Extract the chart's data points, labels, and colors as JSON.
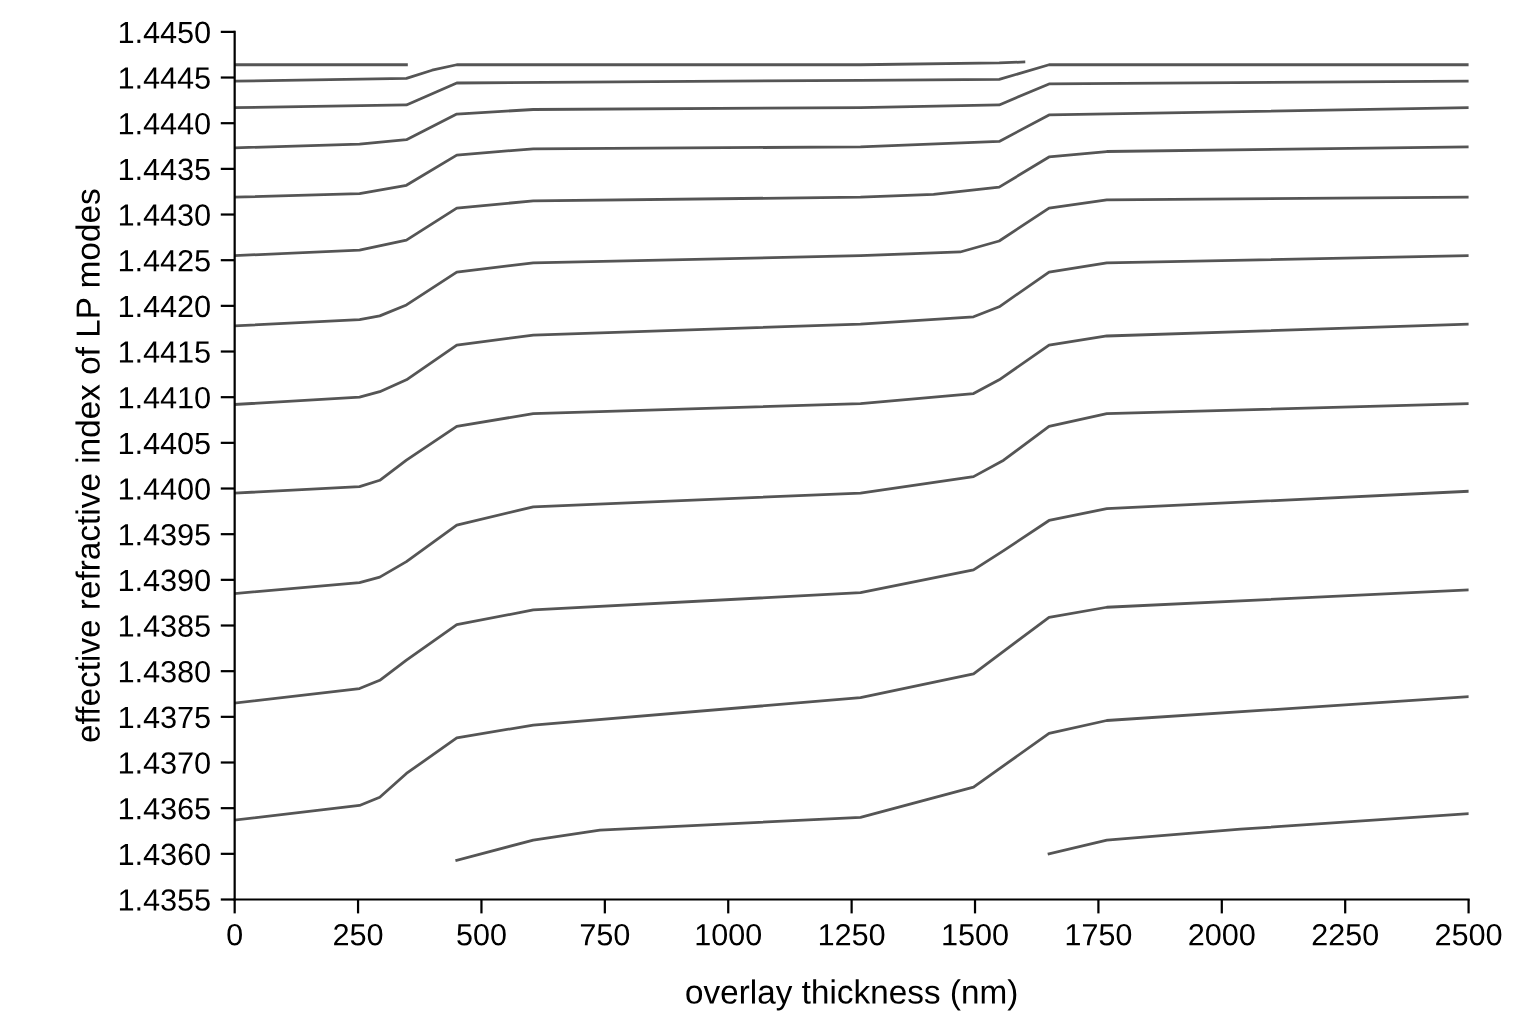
{
  "chart_data": {
    "type": "line",
    "xlabel": "overlay thickness (nm)",
    "ylabel": "effective refractive index of LP modes",
    "xlim": [
      0,
      2500
    ],
    "xticks": [
      0,
      250,
      500,
      750,
      1000,
      1250,
      1500,
      1750,
      2000,
      2250,
      2500
    ],
    "ylim": [
      1.4355,
      1.445
    ],
    "yticks": [
      1.4355,
      {
        "value": 1.436,
        "label": "1.4360"
      },
      1.4365,
      {
        "value": 1.437,
        "label": "1.4370"
      },
      1.4375,
      {
        "value": 1.438,
        "label": "1.4380"
      },
      1.4385,
      {
        "value": 1.439,
        "label": "1.4390"
      },
      1.4395,
      {
        "value": 1.44,
        "label": "1.4400"
      },
      1.4405,
      {
        "value": 1.441,
        "label": "1.4410"
      },
      1.4415,
      {
        "value": 1.442,
        "label": "1.4420"
      },
      1.4425,
      {
        "value": 1.443,
        "label": "1.4430"
      },
      1.4435,
      {
        "value": 1.444,
        "label": "1.4440"
      },
      1.4445,
      {
        "value": 1.445,
        "label": "1.4450"
      }
    ],
    "grid": false,
    "legend": false,
    "marker": "none",
    "line_style": "solid",
    "series": [
      {
        "color": "#555555",
        "x": [
          0,
          348
        ],
        "values": [
          1.44464,
          1.44464
        ]
      },
      {
        "color": "#555555",
        "x": [
          0,
          348,
          400,
          450,
          1268,
          1549,
          1599
        ],
        "values": [
          1.44446,
          1.44449,
          1.44458,
          1.44464,
          1.44464,
          1.44466,
          1.44467
        ]
      },
      {
        "color": "#555555",
        "x": [
          0,
          348,
          450,
          1268,
          1549,
          1650,
          1767,
          2500
        ],
        "values": [
          1.44417,
          1.4442,
          1.44444,
          1.44447,
          1.44448,
          1.44464,
          1.44464,
          1.44464
        ]
      },
      {
        "color": "#555555",
        "x": [
          0,
          253,
          348,
          450,
          605,
          1268,
          1549,
          1650,
          2500
        ],
        "values": [
          1.44373,
          1.44377,
          1.44382,
          1.4441,
          1.44415,
          1.44417,
          1.4442,
          1.44443,
          1.44446
        ]
      },
      {
        "color": "#555555",
        "x": [
          0,
          253,
          348,
          450,
          605,
          1268,
          1549,
          1650,
          2500
        ],
        "values": [
          1.44319,
          1.44323,
          1.44332,
          1.44365,
          1.44372,
          1.44374,
          1.4438,
          1.44409,
          1.44417
        ]
      },
      {
        "color": "#555555",
        "x": [
          0,
          253,
          348,
          450,
          605,
          1268,
          1416,
          1549,
          1650,
          1767,
          2500
        ],
        "values": [
          1.44255,
          1.44261,
          1.44272,
          1.44307,
          1.44315,
          1.44319,
          1.44322,
          1.4433,
          1.44363,
          1.44369,
          1.44374
        ]
      },
      {
        "color": "#555555",
        "x": [
          0,
          253,
          294,
          348,
          450,
          605,
          1268,
          1470,
          1549,
          1650,
          1767,
          2500
        ],
        "values": [
          1.44178,
          1.44185,
          1.44189,
          1.44201,
          1.44237,
          1.44247,
          1.44255,
          1.44259,
          1.44271,
          1.44307,
          1.44316,
          1.44319
        ]
      },
      {
        "color": "#555555",
        "x": [
          0,
          253,
          294,
          348,
          450,
          605,
          1268,
          1497,
          1549,
          1650,
          1767,
          2500
        ],
        "values": [
          1.44092,
          1.441,
          1.44106,
          1.44119,
          1.44157,
          1.44168,
          1.4418,
          1.44188,
          1.44199,
          1.44237,
          1.44247,
          1.44255
        ]
      },
      {
        "color": "#555555",
        "x": [
          0,
          253,
          294,
          348,
          450,
          605,
          1268,
          1497,
          1549,
          1650,
          1767,
          2500
        ],
        "values": [
          1.43995,
          1.44002,
          1.44009,
          1.44031,
          1.44068,
          1.44082,
          1.44093,
          1.44104,
          1.44119,
          1.44157,
          1.44167,
          1.4418
        ]
      },
      {
        "color": "#555555",
        "x": [
          0,
          253,
          294,
          348,
          450,
          605,
          1268,
          1497,
          1558,
          1650,
          1767,
          2500
        ],
        "values": [
          1.43885,
          1.43897,
          1.43903,
          1.4392,
          1.4396,
          1.4398,
          1.43995,
          1.44013,
          1.44031,
          1.44068,
          1.44082,
          1.44093
        ]
      },
      {
        "color": "#555555",
        "x": [
          0,
          253,
          294,
          348,
          450,
          605,
          1268,
          1497,
          1558,
          1650,
          1767,
          2500
        ],
        "values": [
          1.43765,
          1.43781,
          1.4379,
          1.43812,
          1.43851,
          1.43867,
          1.43886,
          1.43911,
          1.43932,
          1.43965,
          1.43978,
          1.43997
        ]
      },
      {
        "color": "#555555",
        "x": [
          0,
          253,
          294,
          348,
          450,
          605,
          1268,
          1497,
          1650,
          1767,
          2500
        ],
        "values": [
          1.43637,
          1.43653,
          1.43662,
          1.43688,
          1.43727,
          1.43741,
          1.43771,
          1.43797,
          1.43859,
          1.4387,
          1.43889
        ]
      },
      {
        "color": "#555555",
        "x": [
          450,
          605,
          740,
          1268,
          1497,
          1650,
          1767,
          2500
        ],
        "values": [
          1.43593,
          1.43615,
          1.43626,
          1.4364,
          1.43673,
          1.43732,
          1.43746,
          1.43772
        ]
      },
      {
        "color": "#555555",
        "x": [
          1650,
          1767,
          2038,
          2500
        ],
        "values": [
          1.436,
          1.43615,
          1.43627,
          1.43644
        ]
      }
    ]
  }
}
